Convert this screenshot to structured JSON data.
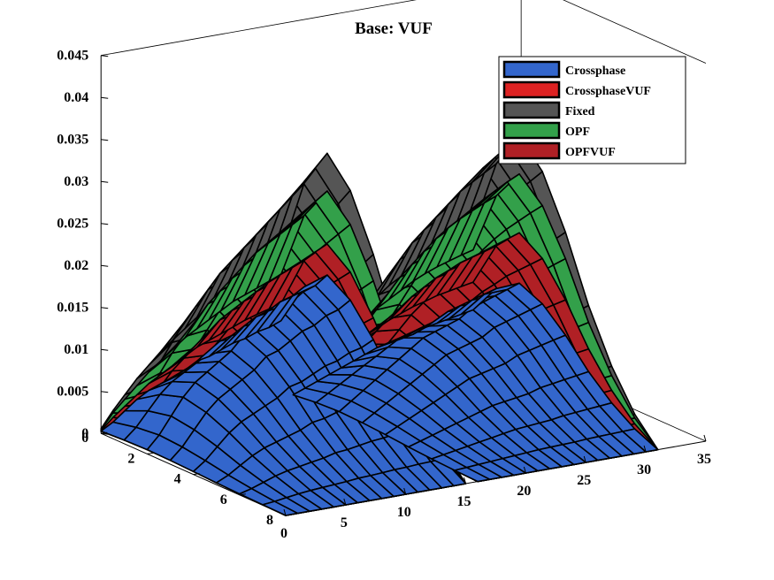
{
  "chart_data": {
    "type": "surface3d",
    "title": "Base: VUF",
    "xlabel": "",
    "ylabel": "",
    "zlabel": "",
    "x_ticks": [
      0,
      5,
      10,
      15,
      20,
      25,
      30,
      35
    ],
    "y_ticks": [
      0,
      2,
      4,
      6,
      8
    ],
    "z_ticks": [
      "0",
      "0.005",
      "0.01",
      "0.015",
      "0.02",
      "0.025",
      "0.03",
      "0.035",
      "0.04",
      "0.045"
    ],
    "xlim": [
      0,
      35
    ],
    "ylim": [
      0,
      8
    ],
    "zlim": [
      0,
      0.045
    ],
    "legend_position": "top-right",
    "series": [
      {
        "name": "Crossphase",
        "color": "#3366cc",
        "ridge": [
          0.0005,
          0.002,
          0.004,
          0.006,
          0.0075,
          0.0085,
          0.0095,
          0.0105,
          0.012,
          0.0125,
          0.0135,
          0.0145,
          0.015,
          0.016,
          0.0165,
          0.0175,
          0.001,
          0.002,
          0.003,
          0.004,
          0.005,
          0.006,
          0.007,
          0.008,
          0.0085,
          0.009,
          0.0095,
          0.0105,
          0.011,
          0.0115,
          0.012,
          0.0125
        ]
      },
      {
        "name": "CrossphaseVUF",
        "color": "#dd2222",
        "ridge": [
          0.0005,
          0.0008,
          0.001,
          0.0012,
          0.0015,
          0.0018,
          0.002,
          0.0022,
          0.0025,
          0.0028,
          0.003,
          0.0028,
          0.0025,
          0.0022,
          0.002,
          0.0018,
          0.0012,
          0.0015,
          0.0018,
          0.002,
          0.0022,
          0.0025,
          0.0028,
          0.003,
          0.0032,
          0.0035,
          0.0038,
          0.004,
          0.0042,
          0.0045,
          0.0047,
          0.005
        ]
      },
      {
        "name": "Fixed",
        "color": "#555555",
        "ridge": [
          0.001,
          0.0045,
          0.0075,
          0.0105,
          0.013,
          0.0155,
          0.0175,
          0.0195,
          0.0215,
          0.023,
          0.0245,
          0.026,
          0.0275,
          0.029,
          0.0305,
          0.032,
          0.002,
          0.0045,
          0.007,
          0.0095,
          0.012,
          0.0145,
          0.017,
          0.019,
          0.021,
          0.0225,
          0.024,
          0.0255,
          0.027,
          0.028,
          0.029,
          0.03
        ]
      },
      {
        "name": "OPF",
        "color": "#33a04a",
        "ridge": [
          0.0008,
          0.004,
          0.0065,
          0.009,
          0.0115,
          0.0135,
          0.0155,
          0.0175,
          0.019,
          0.0205,
          0.022,
          0.0235,
          0.0245,
          0.0255,
          0.0265,
          0.0275,
          0.0018,
          0.004,
          0.0062,
          0.0085,
          0.0105,
          0.0125,
          0.0145,
          0.0165,
          0.018,
          0.0195,
          0.021,
          0.0222,
          0.0232,
          0.024,
          0.0248,
          0.0255
        ]
      },
      {
        "name": "OPFVUF",
        "color": "#b02025",
        "ridge": [
          0.0006,
          0.003,
          0.005,
          0.007,
          0.009,
          0.0105,
          0.012,
          0.0135,
          0.015,
          0.016,
          0.017,
          0.018,
          0.019,
          0.0198,
          0.0205,
          0.0212,
          0.0014,
          0.003,
          0.0048,
          0.0065,
          0.008,
          0.0095,
          0.011,
          0.0122,
          0.0135,
          0.0145,
          0.0155,
          0.0162,
          0.017,
          0.0175,
          0.018,
          0.0185
        ]
      }
    ]
  }
}
